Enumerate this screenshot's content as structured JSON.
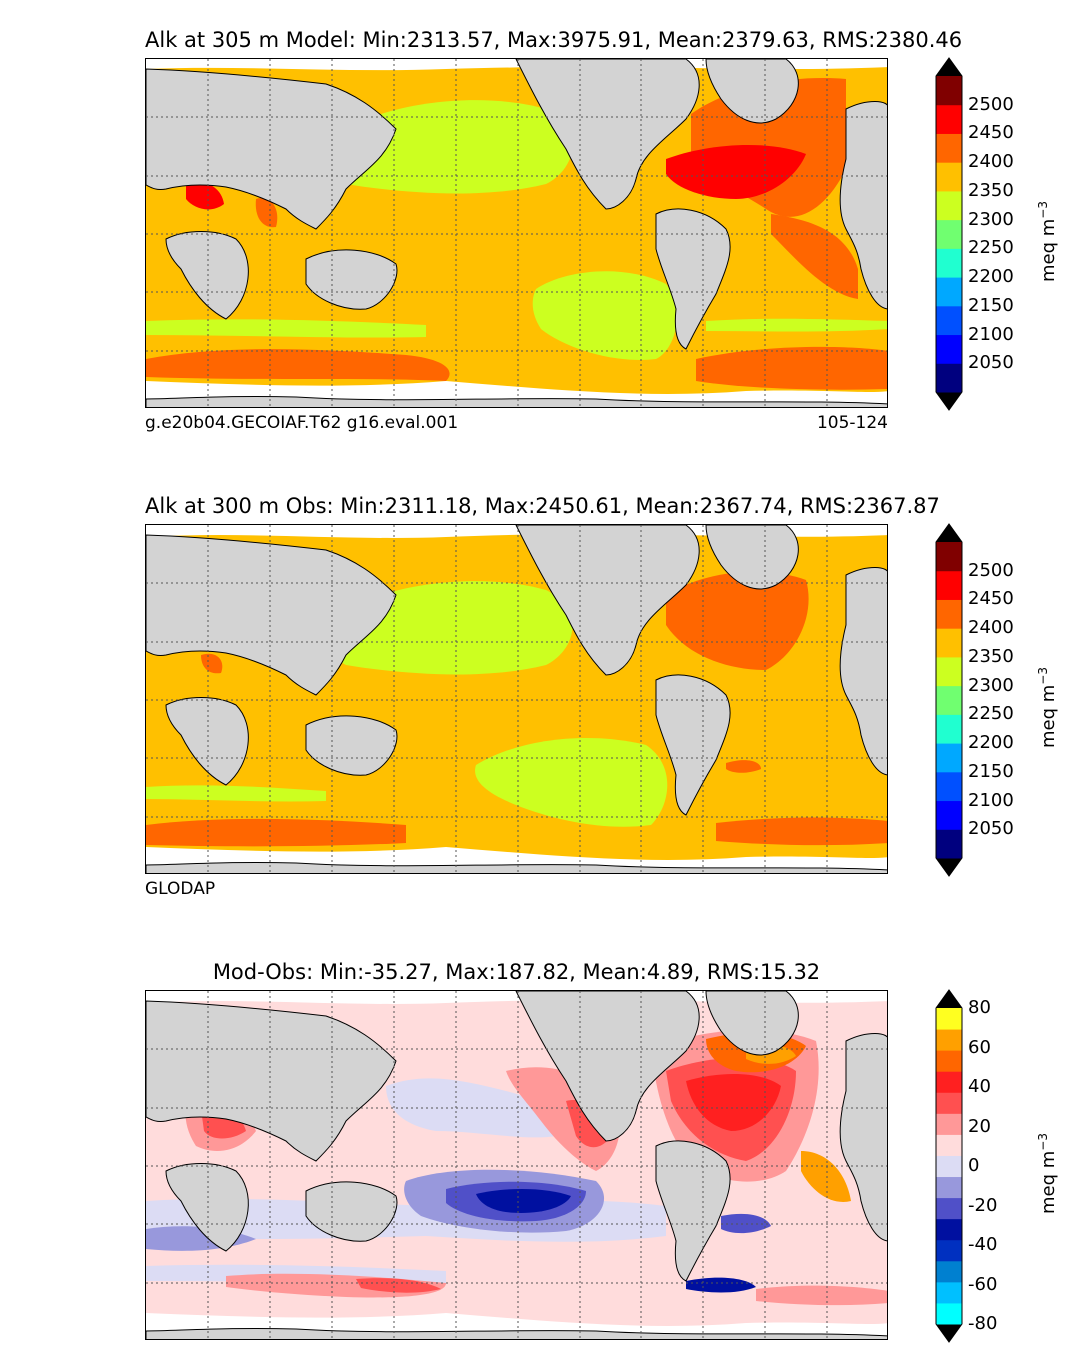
{
  "panels": [
    {
      "id": "model",
      "title": "Alk at 305 m Model: Min:2313.57, Max:3975.91, Mean:2379.63, RMS:2380.46",
      "footer_left": "g.e20b04.GECOIAF.T62 g16.eval.001",
      "footer_right": "105-124",
      "colorbar": {
        "label": "meq m",
        "exponent": "−3",
        "ticks": [
          "2050",
          "2100",
          "2150",
          "2200",
          "2250",
          "2300",
          "2350",
          "2400",
          "2450",
          "2500"
        ],
        "colors": [
          "#00007f",
          "#0000ff",
          "#0050ff",
          "#00a8ff",
          "#20ffd0",
          "#70ff70",
          "#ccff20",
          "#ffc000",
          "#ff6600",
          "#ff0000",
          "#800000"
        ],
        "under_color": "#00004a",
        "over_color": "#000000"
      }
    },
    {
      "id": "obs",
      "title": "Alk at 300 m Obs: Min:2311.18, Max:2450.61, Mean:2367.74, RMS:2367.87",
      "footer_left": "GLODAP",
      "footer_right": "",
      "colorbar": {
        "label": "meq m",
        "exponent": "−3",
        "ticks": [
          "2050",
          "2100",
          "2150",
          "2200",
          "2250",
          "2300",
          "2350",
          "2400",
          "2450",
          "2500"
        ],
        "colors": [
          "#00007f",
          "#0000ff",
          "#0050ff",
          "#00a8ff",
          "#20ffd0",
          "#70ff70",
          "#ccff20",
          "#ffc000",
          "#ff6600",
          "#ff0000",
          "#800000"
        ],
        "under_color": "#00004a",
        "over_color": "#000000"
      }
    },
    {
      "id": "diff",
      "title": "Mod-Obs: Min:-35.27, Max:187.82, Mean:4.89, RMS:15.32",
      "footer_left": "",
      "footer_right": "",
      "colorbar": {
        "label": "meq m",
        "exponent": "−3",
        "ticks": [
          "-80",
          "-60",
          "-40",
          "-20",
          "0",
          "20",
          "40",
          "60",
          "80"
        ],
        "colors": [
          "#00ffff",
          "#00c0ff",
          "#0080d0",
          "#0030c0",
          "#0010a0",
          "#5050c8",
          "#9898dc",
          "#dcdcf4",
          "#ffdcdc",
          "#ff9898",
          "#ff5050",
          "#ff2020",
          "#ff6600",
          "#ffa000",
          "#ffff20"
        ],
        "under_color": "#00ffff",
        "over_color": "#000000"
      }
    }
  ],
  "colors": {
    "land": "#d3d3d3",
    "ice": "#ffffff",
    "grid": "#555555"
  }
}
